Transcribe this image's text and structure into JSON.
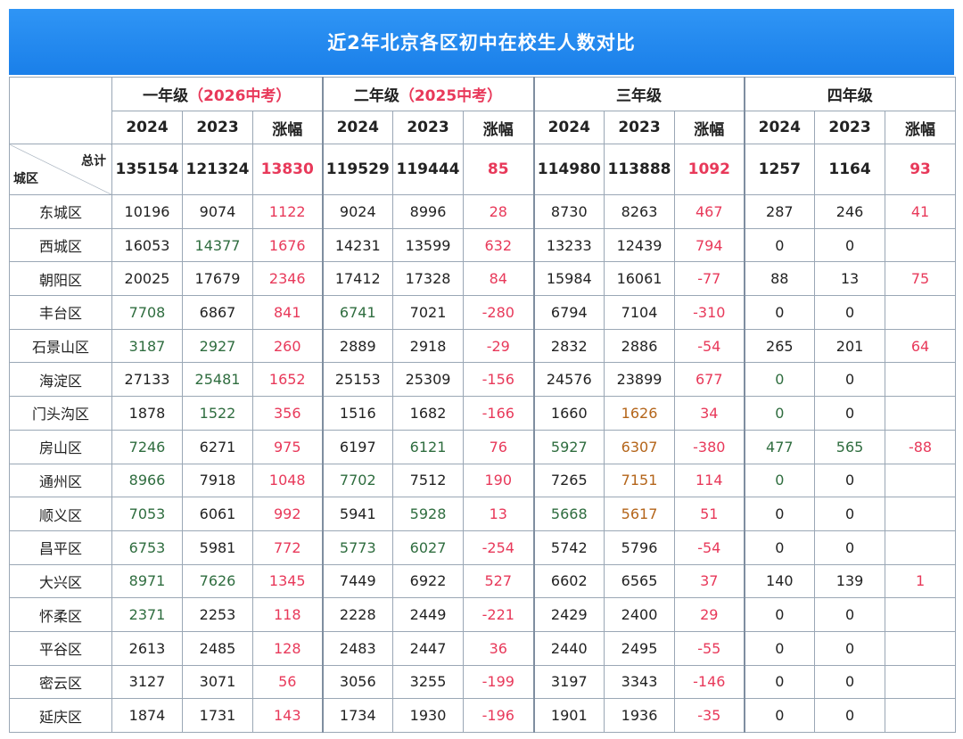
{
  "title": "近2年北京各区初中在校生人数对比",
  "groups": [
    {
      "name": "一年级",
      "note": "（2026中考）"
    },
    {
      "name": "二年级",
      "note": "（2025中考）"
    },
    {
      "name": "三年级",
      "note": ""
    },
    {
      "name": "四年级",
      "note": ""
    }
  ],
  "subheaders": [
    "2024",
    "2023",
    "涨幅"
  ],
  "corner": {
    "top": "总计",
    "bottom": "城区"
  },
  "totals": [
    "135154",
    "121324",
    "13830",
    "119529",
    "119444",
    "85",
    "114980",
    "113888",
    "1092",
    "1257",
    "1164",
    "93"
  ],
  "rows": [
    {
      "district": "东城区",
      "values": [
        "10196",
        "9074",
        "1122",
        "9024",
        "8996",
        "28",
        "8730",
        "8263",
        "467",
        "287",
        "246",
        "41"
      ]
    },
    {
      "district": "西城区",
      "values": [
        "16053",
        "14377",
        "1676",
        "14231",
        "13599",
        "632",
        "13233",
        "12439",
        "794",
        "0",
        "0",
        ""
      ]
    },
    {
      "district": "朝阳区",
      "values": [
        "20025",
        "17679",
        "2346",
        "17412",
        "17328",
        "84",
        "15984",
        "16061",
        "-77",
        "88",
        "13",
        "75"
      ]
    },
    {
      "district": "丰台区",
      "values": [
        "7708",
        "6867",
        "841",
        "6741",
        "7021",
        "-280",
        "6794",
        "7104",
        "-310",
        "0",
        "0",
        ""
      ]
    },
    {
      "district": "石景山区",
      "values": [
        "3187",
        "2927",
        "260",
        "2889",
        "2918",
        "-29",
        "2832",
        "2886",
        "-54",
        "265",
        "201",
        "64"
      ]
    },
    {
      "district": "海淀区",
      "values": [
        "27133",
        "25481",
        "1652",
        "25153",
        "25309",
        "-156",
        "24576",
        "23899",
        "677",
        "0",
        "0",
        ""
      ]
    },
    {
      "district": "门头沟区",
      "values": [
        "1878",
        "1522",
        "356",
        "1516",
        "1682",
        "-166",
        "1660",
        "1626",
        "34",
        "0",
        "0",
        ""
      ]
    },
    {
      "district": "房山区",
      "values": [
        "7246",
        "6271",
        "975",
        "6197",
        "6121",
        "76",
        "5927",
        "6307",
        "-380",
        "477",
        "565",
        "-88"
      ]
    },
    {
      "district": "通州区",
      "values": [
        "8966",
        "7918",
        "1048",
        "7702",
        "7512",
        "190",
        "7265",
        "7151",
        "114",
        "0",
        "0",
        ""
      ]
    },
    {
      "district": "顺义区",
      "values": [
        "7053",
        "6061",
        "992",
        "5941",
        "5928",
        "13",
        "5668",
        "5617",
        "51",
        "0",
        "0",
        ""
      ]
    },
    {
      "district": "昌平区",
      "values": [
        "6753",
        "5981",
        "772",
        "5773",
        "6027",
        "-254",
        "5742",
        "5796",
        "-54",
        "0",
        "0",
        ""
      ]
    },
    {
      "district": "大兴区",
      "values": [
        "8971",
        "7626",
        "1345",
        "7449",
        "6922",
        "527",
        "6602",
        "6565",
        "37",
        "140",
        "139",
        "1"
      ]
    },
    {
      "district": "怀柔区",
      "values": [
        "2371",
        "2253",
        "118",
        "2228",
        "2449",
        "-221",
        "2429",
        "2400",
        "29",
        "0",
        "0",
        ""
      ]
    },
    {
      "district": "平谷区",
      "values": [
        "2613",
        "2485",
        "128",
        "2483",
        "2447",
        "36",
        "2440",
        "2495",
        "-55",
        "0",
        "0",
        ""
      ]
    },
    {
      "district": "密云区",
      "values": [
        "3127",
        "3071",
        "56",
        "3056",
        "3255",
        "-199",
        "3197",
        "3343",
        "-146",
        "0",
        "0",
        ""
      ]
    },
    {
      "district": "延庆区",
      "values": [
        "1874",
        "1731",
        "143",
        "1734",
        "1930",
        "-196",
        "1901",
        "1936",
        "-35",
        "0",
        "0",
        ""
      ]
    }
  ],
  "colors": {
    "banner": "#1a7fe9",
    "change": "#e8395a",
    "green_value": "#2f6d3f",
    "orange_value": "#b4651a",
    "border": "#9aa7b5"
  }
}
